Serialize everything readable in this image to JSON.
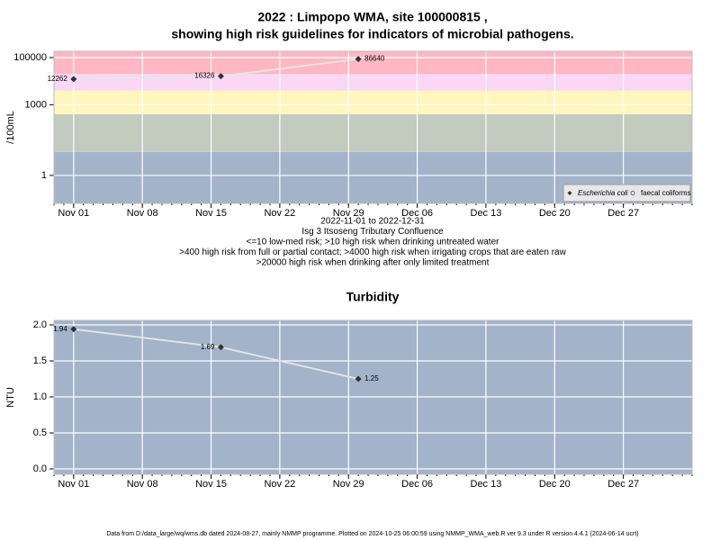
{
  "chart_data": [
    {
      "type": "line",
      "title": "2022 : Limpopo WMA, site 100000815 ,",
      "subtitle": "showing high risk guidelines for indicators of microbial pathogens.",
      "y_label": "/100mL",
      "log_y": true,
      "x": [
        "2022-11-01",
        "2022-11-16",
        "2022-11-30"
      ],
      "series": [
        {
          "name": "Escherichia coli",
          "color": "#333333",
          "marker": "diamond",
          "values": [
            12262,
            16326,
            86640
          ]
        },
        {
          "name": "faecal coliforms",
          "color": "#333333",
          "marker": "circle",
          "values": [
            null,
            null,
            null
          ]
        }
      ],
      "line_color": "#e6e6e6",
      "xlim": [
        "2022-10-30",
        "2023-01-03"
      ],
      "xticks": [
        {
          "value": "2022-11-01",
          "label": "Nov 01"
        },
        {
          "value": "2022-11-08",
          "label": "Nov 08"
        },
        {
          "value": "2022-11-15",
          "label": "Nov 15"
        },
        {
          "value": "2022-11-22",
          "label": "Nov 22"
        },
        {
          "value": "2022-11-29",
          "label": "Nov 29"
        },
        {
          "value": "2022-12-06",
          "label": "Dec 06"
        },
        {
          "value": "2022-12-13",
          "label": "Dec 13"
        },
        {
          "value": "2022-12-20",
          "label": "Dec 20"
        },
        {
          "value": "2022-12-27",
          "label": "Dec 27"
        }
      ],
      "ylim": [
        0.065,
        185000
      ],
      "yticks": [
        1,
        1000,
        100000
      ],
      "bands": [
        {
          "from": 0.065,
          "to": 10,
          "color": "#a3b3ca"
        },
        {
          "from": 10,
          "to": 400,
          "color": "#c3cbbf"
        },
        {
          "from": 400,
          "to": 4000,
          "color": "#fff6bd"
        },
        {
          "from": 4000,
          "to": 20000,
          "color": "#f9d7f5"
        },
        {
          "from": 20000,
          "to": 185000,
          "color": "#ffb7c3"
        }
      ],
      "grid": true,
      "legend": "lower right",
      "notes": [
        "2022-11-01 to 2022-12-31",
        "Isg 3 Itsoseng Tributary Confluence",
        "<=10 low-med risk; >10 high risk when drinking untreated water",
        ">400 high risk from full or partial contact; >4000 high risk when irrigating crops that are eaten raw",
        ">20000 high risk when drinking after only limited treatment"
      ]
    },
    {
      "type": "line",
      "title": "Turbidity",
      "y_label": "NTU",
      "log_y": false,
      "x": [
        "2022-11-01",
        "2022-11-16",
        "2022-11-30"
      ],
      "series": [
        {
          "name": "Turbidity",
          "color": "#333333",
          "marker": "diamond",
          "values": [
            1.94,
            1.69,
            1.25
          ]
        }
      ],
      "line_color": "#e6e6e6",
      "background": "#a3b3ca",
      "xlim": [
        "2022-10-30",
        "2023-01-03"
      ],
      "xticks": [
        {
          "value": "2022-11-01",
          "label": "Nov 01"
        },
        {
          "value": "2022-11-08",
          "label": "Nov 08"
        },
        {
          "value": "2022-11-15",
          "label": "Nov 15"
        },
        {
          "value": "2022-11-22",
          "label": "Nov 22"
        },
        {
          "value": "2022-11-29",
          "label": "Nov 29"
        },
        {
          "value": "2022-12-06",
          "label": "Dec 06"
        },
        {
          "value": "2022-12-13",
          "label": "Dec 13"
        },
        {
          "value": "2022-12-20",
          "label": "Dec 20"
        },
        {
          "value": "2022-12-27",
          "label": "Dec 27"
        }
      ],
      "ylim": [
        -0.075,
        2.0625
      ],
      "yticks": [
        {
          "value": 0,
          "label": "0.0"
        },
        {
          "value": 0.5,
          "label": "0.5"
        },
        {
          "value": 1,
          "label": "1.0"
        },
        {
          "value": 1.5,
          "label": "1.5"
        },
        {
          "value": 2,
          "label": "2.0"
        }
      ],
      "grid": true
    }
  ],
  "footer": "Data from D:/data_large/wq/wms.db dated 2024-08-27, mainly NMMP programme. Plotted on 2024-10-25 06:00:59 using NMMP_WMA_web.R ver 9.3 under R version 4.4.1 (2024-06-14 ucrt)"
}
